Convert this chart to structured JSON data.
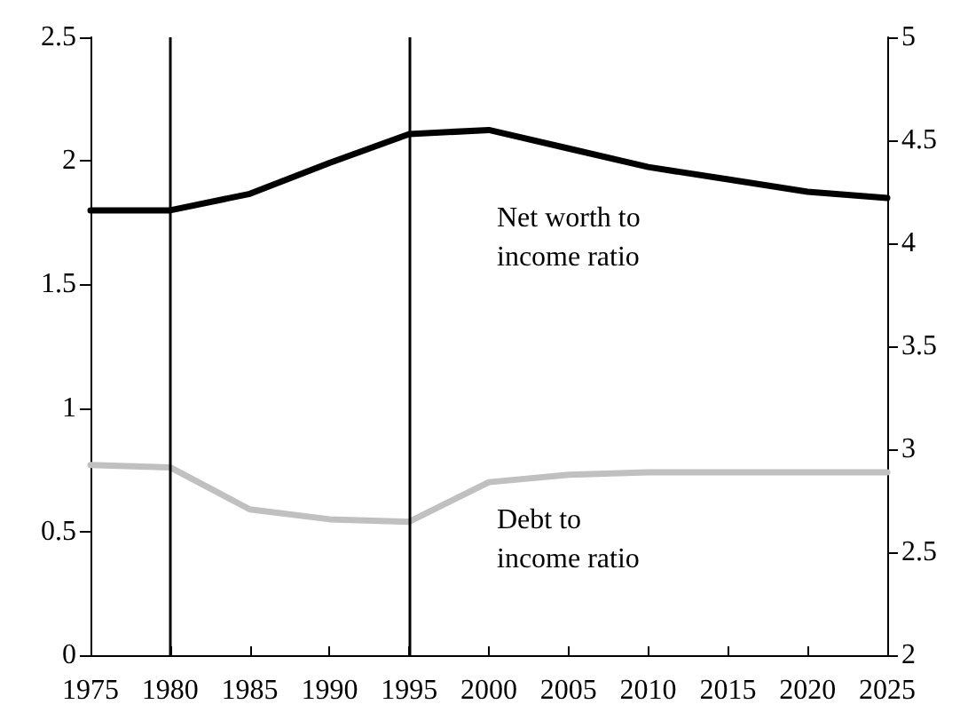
{
  "chart_data": {
    "type": "line",
    "x": [
      1975,
      1980,
      1985,
      1990,
      1995,
      2000,
      2005,
      2010,
      2015,
      2020,
      2025
    ],
    "series": [
      {
        "name": "Net worth to income ratio",
        "color": "#000000",
        "axis": "y2",
        "values": [
          4.16,
          4.16,
          4.24,
          4.39,
          4.53,
          4.55,
          4.46,
          4.37,
          4.31,
          4.25,
          4.22
        ]
      },
      {
        "name": "Debt to income ratio",
        "color": "#c0c0c0",
        "values": [
          0.77,
          0.76,
          0.59,
          0.55,
          0.54,
          0.7,
          0.73,
          0.74,
          0.74,
          0.74,
          0.74
        ]
      }
    ],
    "xlim": [
      1975,
      2025
    ],
    "xticks": [
      1975,
      1980,
      1985,
      1990,
      1995,
      2000,
      2005,
      2010,
      2015,
      2020,
      2025
    ],
    "ylim": [
      0,
      2.5
    ],
    "yticks": [
      0,
      0.5,
      1,
      1.5,
      2,
      2.5
    ],
    "y2lim": [
      2,
      5
    ],
    "y2ticks": [
      2,
      2.5,
      3,
      3.5,
      4,
      4.5,
      5
    ],
    "ref_lines": [
      {
        "axis": "x",
        "value": 1980,
        "color": "#000000"
      },
      {
        "axis": "x",
        "value": 1995,
        "color": "#000000"
      }
    ],
    "grid": false,
    "legend": false,
    "marker": "none",
    "line_style": "solid"
  }
}
